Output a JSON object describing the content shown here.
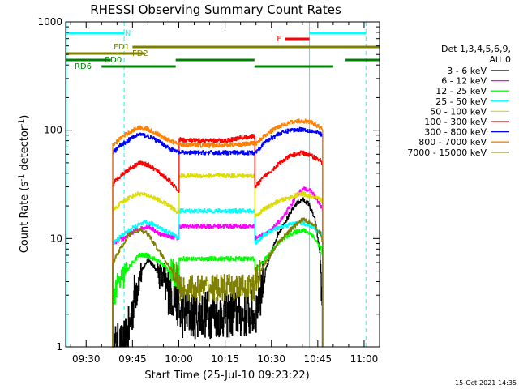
{
  "chart_data": {
    "type": "line",
    "title": "RHESSI Observing Summary Count Rates",
    "xlabel": "Start Time (25-Jul-10 09:23:22)",
    "ylabel_main": "Count Rate (s",
    "ylabel_sup1": "-1",
    "ylabel_mid": " detector",
    "ylabel_sup2": "-1",
    "ylabel_end": ")",
    "timestamp": "15-Oct-2021 14:35",
    "yscale": "log",
    "ylim": [
      1,
      1000
    ],
    "xlim_minutes": [
      563.37,
      665.0
    ],
    "x_ticks": [
      {
        "t": 570,
        "label": "09:30"
      },
      {
        "t": 585,
        "label": "09:45"
      },
      {
        "t": 600,
        "label": "10:00"
      },
      {
        "t": 615,
        "label": "10:15"
      },
      {
        "t": 630,
        "label": "10:30"
      },
      {
        "t": 645,
        "label": "10:45"
      },
      {
        "t": 660,
        "label": "11:00"
      }
    ],
    "y_ticks": [
      {
        "v": 1,
        "label": "1"
      },
      {
        "v": 10,
        "label": "10"
      },
      {
        "v": 100,
        "label": "100"
      },
      {
        "v": 1000,
        "label": "1000"
      }
    ],
    "legend_header": [
      "Det 1,3,4,5,6,9,",
      "Att 0"
    ],
    "legend_position": "right",
    "series": [
      {
        "name": "3 - 6 keV",
        "color": "#000000",
        "x": [
          578.5,
          582,
          584,
          586,
          588,
          590,
          593,
          596,
          600,
          600.1,
          605,
          610,
          615,
          620,
          624.5,
          624.6,
          628,
          632,
          636,
          638,
          640,
          642,
          644,
          645.5,
          646,
          646.5
        ],
        "y": [
          1,
          1,
          1.5,
          3.5,
          5,
          6.5,
          5,
          3.5,
          2.5,
          2,
          2,
          2,
          2,
          2,
          2,
          2,
          5,
          11,
          17,
          21,
          23,
          21,
          15,
          8,
          5,
          1
        ]
      },
      {
        "name": "6 - 12 keV",
        "color": "#ff00ff",
        "x": [
          578.5,
          578.6,
          582,
          586,
          590,
          594,
          600,
          600.1,
          610,
          620,
          624.5,
          624.6,
          630,
          634,
          637,
          639,
          641,
          643,
          645,
          646,
          646.5,
          646.6
        ],
        "y": [
          1,
          9,
          10,
          12,
          13,
          11,
          10,
          13,
          13,
          13,
          13,
          10,
          12,
          16,
          22,
          27,
          29,
          27,
          22,
          20,
          18,
          1
        ]
      },
      {
        "name": "12 - 25 keV",
        "color": "#00ff00",
        "x": [
          578.5,
          578.6,
          581,
          584,
          587,
          590,
          594,
          597,
          600,
          600.1,
          610,
          620,
          624.5,
          624.6,
          628,
          632,
          636,
          640,
          643,
          646,
          646.5,
          646.6
        ],
        "y": [
          1,
          3,
          4,
          5.5,
          7,
          7,
          6,
          5,
          4.5,
          6.5,
          6.5,
          6.5,
          6.5,
          5,
          6.5,
          9,
          11,
          12,
          11,
          8,
          7,
          1
        ]
      },
      {
        "name": "25 - 50 keV",
        "color": "#00ffff",
        "x": [
          578.5,
          578.6,
          582,
          586,
          589,
          592,
          595,
          598,
          600,
          600.1,
          610,
          620,
          624.5,
          624.6,
          628,
          632,
          636,
          640,
          643,
          646,
          646.5,
          646.6
        ],
        "y": [
          1,
          9,
          11,
          13,
          14,
          13.5,
          12,
          11,
          10,
          18,
          18,
          18,
          18,
          9,
          11,
          12.5,
          13.5,
          14,
          13,
          11,
          10,
          1
        ]
      },
      {
        "name": "50 - 100 keV",
        "color": "#dddd00",
        "x": [
          578.5,
          578.6,
          581,
          584,
          587,
          590,
          593,
          597,
          600,
          600.1,
          610,
          620,
          624.5,
          624.6,
          628,
          632,
          636,
          640,
          643,
          646,
          646.5,
          646.6
        ],
        "y": [
          1,
          18,
          21,
          24,
          26,
          25,
          23,
          20,
          17,
          38,
          38,
          38,
          38,
          16,
          19,
          22,
          24,
          26,
          24,
          23,
          22,
          1
        ]
      },
      {
        "name": "100 - 300 keV",
        "color": "#ff0000",
        "x": [
          578.5,
          578.6,
          581,
          584,
          587,
          590,
          593,
          597,
          600,
          600.1,
          605,
          610,
          615,
          620,
          624.5,
          624.6,
          628,
          632,
          636,
          640,
          643,
          646,
          646.5,
          646.6
        ],
        "y": [
          1,
          32,
          38,
          44,
          50,
          48,
          42,
          34,
          27,
          82,
          80,
          80,
          80,
          85,
          88,
          30,
          38,
          48,
          58,
          62,
          58,
          52,
          48,
          1
        ]
      },
      {
        "name": "300 - 800 keV",
        "color": "#0000ff",
        "x": [
          578.5,
          578.6,
          581,
          584,
          587,
          590,
          593,
          597,
          600,
          600.1,
          610,
          620,
          624.5,
          624.6,
          628,
          632,
          636,
          640,
          643,
          646,
          646.5,
          646.6
        ],
        "y": [
          1,
          62,
          72,
          82,
          92,
          88,
          80,
          68,
          62,
          62,
          62,
          62,
          62,
          62,
          78,
          92,
          100,
          102,
          98,
          92,
          88,
          1
        ]
      },
      {
        "name": "800 - 7000 keV",
        "color": "#ff8000",
        "x": [
          578.5,
          578.6,
          581,
          584,
          587,
          590,
          593,
          597,
          600,
          600.1,
          610,
          620,
          624.5,
          624.6,
          628,
          632,
          636,
          640,
          643,
          646,
          646.5,
          646.6
        ],
        "y": [
          1,
          72,
          84,
          96,
          106,
          102,
          92,
          80,
          74,
          74,
          72,
          74,
          76,
          74,
          90,
          108,
          118,
          122,
          118,
          105,
          98,
          1
        ]
      },
      {
        "name": "7000 - 15000 keV",
        "color": "#808000",
        "x": [
          578.5,
          578.6,
          581,
          584,
          587,
          590,
          593,
          597,
          600,
          600.1,
          610,
          620,
          624.5,
          624.6,
          628,
          632,
          636,
          640,
          643,
          646,
          646.5,
          646.6
        ],
        "y": [
          1,
          6,
          8,
          11,
          12,
          11,
          8,
          5.5,
          4,
          3.5,
          3.5,
          3.5,
          3.5,
          4,
          6,
          9,
          12,
          15,
          14,
          11,
          9,
          1
        ]
      }
    ],
    "vertical_lines": [
      {
        "t": 563.6,
        "color": "#00ffff",
        "style": "solid"
      },
      {
        "t": 582.3,
        "color": "#00ffff",
        "style": "dashed"
      },
      {
        "t": 642.3,
        "color": "#00ffff",
        "style": "solid"
      },
      {
        "t": 660.6,
        "color": "#00ffff",
        "style": "dashed"
      }
    ],
    "flag_bars": [
      {
        "label": "N",
        "color": "#00ffff",
        "segments": [
          [
            563.6,
            582.3
          ],
          [
            642.3,
            660.6
          ]
        ],
        "label_t": 583.5,
        "row": 1
      },
      {
        "label": "F",
        "color": "#ff0000",
        "segments": [
          [
            634.5,
            642.3
          ]
        ],
        "label_t": 632.5,
        "row": 2
      },
      {
        "label": "FD1",
        "color": "#808000",
        "segments": [
          [
            585,
            665
          ]
        ],
        "label_t": 581.5,
        "row": 3
      },
      {
        "label": "FD2",
        "color": "#808000",
        "segments": [
          [
            563.4,
            589
          ]
        ],
        "label_t": 587.5,
        "row": 4
      },
      {
        "label": "RD0",
        "color": "#008000",
        "segments": [
          [
            563.4,
            578
          ],
          [
            599,
            624.5
          ],
          [
            654,
            665
          ]
        ],
        "label_t": 578.8,
        "row": 5
      },
      {
        "label": "RD6",
        "color": "#008000",
        "segments": [
          [
            575,
            599
          ],
          [
            624.5,
            650
          ]
        ],
        "label_t": 569,
        "row": 6
      }
    ]
  }
}
